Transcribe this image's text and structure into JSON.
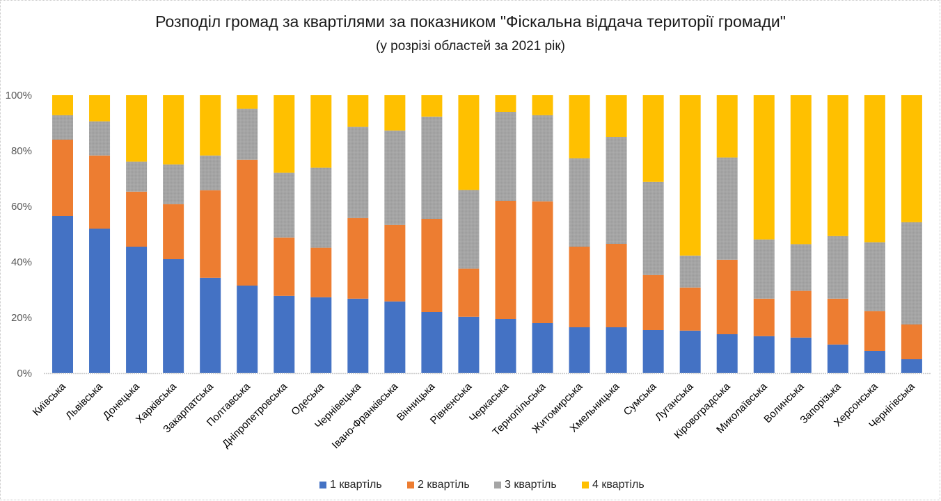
{
  "chart_data": {
    "type": "bar",
    "stacked": "percent",
    "title": "Розподіл громад за квартілями за показником \"Фіскальна віддача території громади\"",
    "subtitle": "(у розрізі областей за 2021 рік)",
    "xlabel": "",
    "ylabel": "",
    "ylim": [
      0,
      100
    ],
    "yticks": [
      "0%",
      "20%",
      "40%",
      "60%",
      "80%",
      "100%"
    ],
    "ytick_values": [
      0,
      20,
      40,
      60,
      80,
      100
    ],
    "grid": false,
    "legend_position": "bottom",
    "categories": [
      "Київська",
      "Львівська",
      "Донецька",
      "Харківська",
      "Закарпатська",
      "Полтавська",
      "Дніпропетровська",
      "Одеська",
      "Чернівецька",
      "Івано-Франківська",
      "Вінницька",
      "Рівненська",
      "Черкаська",
      "Тернопільська",
      "Житомирська",
      "Хмельницька",
      "Сумська",
      "Луганська",
      "Кіровоградська",
      "Миколаївська",
      "Волинська",
      "Запорізька",
      "Херсонська",
      "Чернігівська"
    ],
    "series": [
      {
        "name": "1 квартіль",
        "color": "#4472C4",
        "values": [
          56.5,
          52.0,
          45.5,
          41.0,
          34.3,
          31.5,
          27.8,
          27.3,
          26.8,
          25.8,
          22.0,
          20.3,
          19.5,
          18.0,
          16.5,
          16.5,
          15.5,
          15.3,
          14.0,
          13.3,
          12.8,
          10.3,
          8.0,
          5.0
        ]
      },
      {
        "name": "2 квартіль",
        "color": "#ED7D31",
        "values": [
          27.5,
          26.3,
          19.8,
          19.8,
          31.5,
          45.3,
          21.0,
          17.8,
          29.0,
          27.5,
          33.5,
          17.3,
          42.5,
          43.8,
          29.0,
          30.0,
          19.8,
          15.5,
          26.8,
          13.5,
          16.8,
          16.5,
          14.3,
          12.5
        ]
      },
      {
        "name": "3 квартіль",
        "color": "#A5A5A5",
        "values": [
          8.8,
          12.3,
          10.8,
          14.3,
          12.5,
          18.3,
          23.3,
          28.8,
          32.8,
          34.0,
          36.8,
          28.3,
          32.0,
          31.0,
          31.8,
          38.5,
          33.5,
          11.5,
          36.8,
          21.3,
          16.8,
          22.5,
          24.8,
          36.8
        ]
      },
      {
        "name": "4 квартіль",
        "color": "#FFC000",
        "values": [
          7.2,
          9.4,
          23.9,
          24.9,
          21.7,
          4.9,
          27.9,
          26.1,
          11.4,
          12.7,
          7.7,
          34.1,
          6.0,
          7.2,
          22.7,
          15.0,
          31.2,
          57.7,
          22.4,
          51.9,
          53.6,
          50.7,
          52.9,
          45.7
        ]
      }
    ]
  }
}
